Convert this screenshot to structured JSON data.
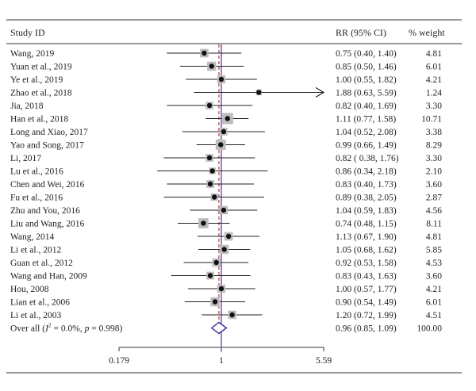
{
  "header": {
    "study_label": "Study ID",
    "rr_label": "RR (95% CI)",
    "weight_label": "% weight"
  },
  "chart_data": {
    "type": "forest",
    "axis": {
      "scale": "log",
      "ticks": [
        {
          "value": 0.179,
          "label": "0.179"
        },
        {
          "value": 1,
          "label": "1"
        },
        {
          "value": 5.59,
          "label": "5.59"
        }
      ],
      "null_line": 1
    },
    "colors": {
      "marker_box": "#bdbdbd",
      "point": "#111111",
      "reference_line": "#7a5ca3",
      "pooled_line": "#c0504d",
      "diamond": "#3a2a8c"
    },
    "studies": [
      {
        "study": "Wang, 2019",
        "rr": 0.75,
        "lo": 0.4,
        "hi": 1.4,
        "ci_text": "0.75 (0.40, 1.40)",
        "weight": 4.81,
        "weight_text": "4.81"
      },
      {
        "study": "Yuan et al., 2019",
        "rr": 0.85,
        "lo": 0.5,
        "hi": 1.46,
        "ci_text": "0.85 (0.50, 1.46)",
        "weight": 6.01,
        "weight_text": "6.01"
      },
      {
        "study": "Ye et al., 2019",
        "rr": 1.0,
        "lo": 0.55,
        "hi": 1.82,
        "ci_text": "1.00 (0.55, 1.82)",
        "weight": 4.21,
        "weight_text": "4.21"
      },
      {
        "study": "Zhao et al., 2018",
        "rr": 1.88,
        "lo": 0.63,
        "hi": 5.59,
        "ci_text": "1.88 (0.63, 5.59)",
        "weight": 1.24,
        "weight_text": "1.24",
        "arrow": true
      },
      {
        "study": "Jia, 2018",
        "rr": 0.82,
        "lo": 0.4,
        "hi": 1.69,
        "ci_text": "0.82 (0.40, 1.69)",
        "weight": 3.3,
        "weight_text": "3.30"
      },
      {
        "study": "Han et al., 2018",
        "rr": 1.11,
        "lo": 0.77,
        "hi": 1.58,
        "ci_text": "1.11 (0.77, 1.58)",
        "weight": 10.71,
        "weight_text": "10.71"
      },
      {
        "study": "Long and Xiao, 2017",
        "rr": 1.04,
        "lo": 0.52,
        "hi": 2.08,
        "ci_text": "1.04 (0.52, 2.08)",
        "weight": 3.38,
        "weight_text": "3.38"
      },
      {
        "study": "Yao and Song, 2017",
        "rr": 0.99,
        "lo": 0.66,
        "hi": 1.49,
        "ci_text": "0.99 (0.66, 1.49)",
        "weight": 8.29,
        "weight_text": "8.29"
      },
      {
        "study": "Li, 2017",
        "rr": 0.82,
        "lo": 0.38,
        "hi": 1.76,
        "ci_text": "0.82 ( 0.38, 1.76)",
        "weight": 3.3,
        "weight_text": "3.30"
      },
      {
        "study": "Lu et al., 2016",
        "rr": 0.86,
        "lo": 0.34,
        "hi": 2.18,
        "ci_text": "0.86 (0.34, 2.18)",
        "weight": 2.1,
        "weight_text": "2.10"
      },
      {
        "study": "Chen and Wei, 2016",
        "rr": 0.83,
        "lo": 0.4,
        "hi": 1.73,
        "ci_text": "0.83 (0.40, 1.73)",
        "weight": 3.6,
        "weight_text": "3.60"
      },
      {
        "study": "Fu et al., 2016",
        "rr": 0.89,
        "lo": 0.38,
        "hi": 2.05,
        "ci_text": "0.89 (0.38, 2.05)",
        "weight": 2.87,
        "weight_text": "2.87"
      },
      {
        "study": "Zhu and You, 2016",
        "rr": 1.04,
        "lo": 0.59,
        "hi": 1.83,
        "ci_text": "1.04 (0.59, 1.83)",
        "weight": 4.56,
        "weight_text": "4.56"
      },
      {
        "study": "Liu and Wang, 2016",
        "rr": 0.74,
        "lo": 0.48,
        "hi": 1.15,
        "ci_text": "0.74 (0.48, 1.15)",
        "weight": 8.11,
        "weight_text": "8.11"
      },
      {
        "study": "Wang, 2014",
        "rr": 1.13,
        "lo": 0.67,
        "hi": 1.9,
        "ci_text": "1.13 (0.67, 1.90)",
        "weight": 4.81,
        "weight_text": "4.81"
      },
      {
        "study": "Li et al., 2012",
        "rr": 1.05,
        "lo": 0.68,
        "hi": 1.62,
        "ci_text": "1.05 (0.68, 1.62)",
        "weight": 5.85,
        "weight_text": "5.85"
      },
      {
        "study": "Guan et al., 2012",
        "rr": 0.92,
        "lo": 0.53,
        "hi": 1.58,
        "ci_text": "0.92 (0.53, 1.58)",
        "weight": 4.53,
        "weight_text": "4.53"
      },
      {
        "study": "Wang and Han, 2009",
        "rr": 0.83,
        "lo": 0.43,
        "hi": 1.63,
        "ci_text": "0.83 (0.43, 1.63)",
        "weight": 3.6,
        "weight_text": "3.60"
      },
      {
        "study": "Hou, 2008",
        "rr": 1.0,
        "lo": 0.57,
        "hi": 1.77,
        "ci_text": "1.00 (0.57, 1.77)",
        "weight": 4.21,
        "weight_text": "4.21"
      },
      {
        "study": "Lian et al., 2006",
        "rr": 0.9,
        "lo": 0.54,
        "hi": 1.49,
        "ci_text": "0.90 (0.54, 1.49)",
        "weight": 6.01,
        "weight_text": "6.01"
      },
      {
        "study": "Li et al., 2003",
        "rr": 1.2,
        "lo": 0.72,
        "hi": 1.99,
        "ci_text": "1.20 (0.72, 1.99)",
        "weight": 4.51,
        "weight_text": "4.51"
      }
    ],
    "overall": {
      "label_prefix": "Over all (",
      "label_i": "I",
      "label_sup": "2",
      "label_mid": " = 0.0%, ",
      "label_p": "p",
      "label_suffix": " = 0.998)",
      "rr": 0.96,
      "lo": 0.85,
      "hi": 1.09,
      "ci_text": "0.96 (0.85, 1.09)",
      "weight": 100.0,
      "weight_text": "100.00"
    }
  }
}
